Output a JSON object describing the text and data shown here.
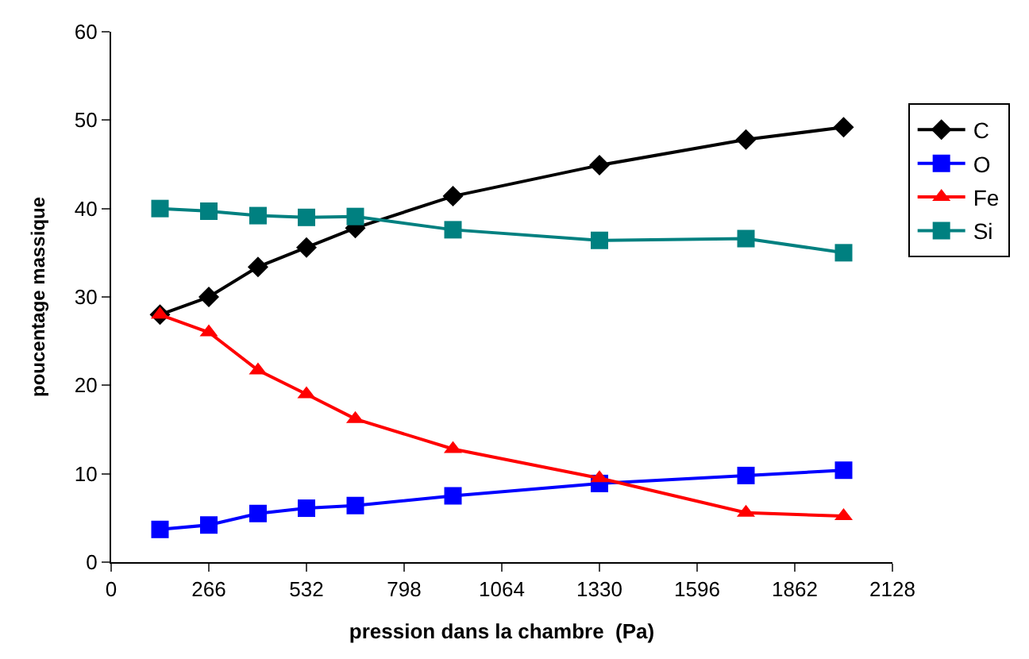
{
  "chart_data": {
    "type": "line",
    "xlabel": "pression dans la chambre  (Pa)",
    "ylabel": "poucentage massique",
    "x": [
      133,
      266,
      400,
      532,
      665,
      931,
      1330,
      1729,
      1995
    ],
    "xlim": [
      0,
      2128
    ],
    "xticks": [
      0,
      266,
      532,
      798,
      1064,
      1330,
      1596,
      1862,
      2128
    ],
    "ylim": [
      0,
      60
    ],
    "yticks": [
      0,
      10,
      20,
      30,
      40,
      50,
      60
    ],
    "legend": "right",
    "line_style": "solid",
    "series": [
      {
        "name": "C",
        "color": "#000000",
        "marker": "diamond",
        "values": [
          28.0,
          30.0,
          33.4,
          35.6,
          37.8,
          41.4,
          44.9,
          47.8,
          49.2
        ]
      },
      {
        "name": "O",
        "color": "#0000ff",
        "marker": "square",
        "values": [
          3.7,
          4.2,
          5.5,
          6.1,
          6.4,
          7.5,
          8.9,
          9.8,
          10.4
        ]
      },
      {
        "name": "Fe",
        "color": "#ff0000",
        "marker": "triangle",
        "values": [
          28.0,
          26.0,
          21.7,
          19.0,
          16.2,
          12.8,
          9.5,
          5.6,
          5.2
        ]
      },
      {
        "name": "Si",
        "color": "#008080",
        "marker": "square",
        "values": [
          40.0,
          39.7,
          39.2,
          39.0,
          39.1,
          37.6,
          36.4,
          36.6,
          35.0
        ]
      }
    ]
  }
}
